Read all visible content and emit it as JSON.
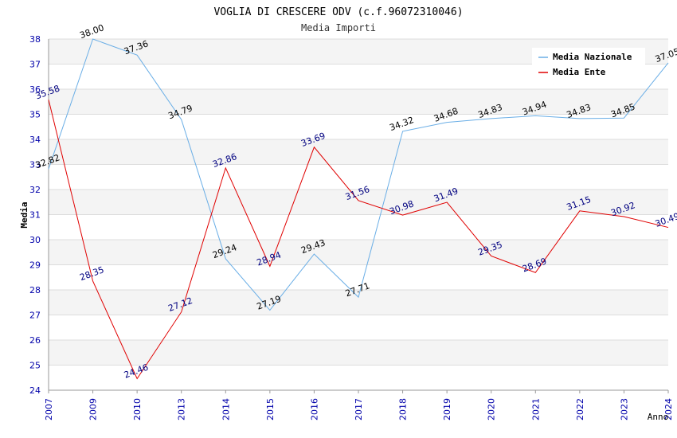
{
  "chart_data": {
    "type": "line",
    "title": "VOGLIA DI CRESCERE ODV (c.f.96072310046)",
    "subtitle": "Media Importi",
    "xlabel": "Anno",
    "ylabel": "Media",
    "ylim": [
      24,
      38
    ],
    "yticks": [
      "24",
      "25",
      "26",
      "27",
      "28",
      "29",
      "30",
      "31",
      "32",
      "33",
      "34",
      "35",
      "36",
      "37",
      "38"
    ],
    "categories": [
      "2007",
      "2009",
      "2010",
      "2013",
      "2014",
      "2015",
      "2016",
      "2017",
      "2018",
      "2019",
      "2020",
      "2021",
      "2022",
      "2023",
      "2024"
    ],
    "grid": true,
    "legend_position": "top-right",
    "series": [
      {
        "name": "Media Nazionale",
        "color": "#6aaee6",
        "label_color": "#000000",
        "values": [
          32.82,
          38.0,
          37.36,
          34.79,
          29.24,
          27.19,
          29.43,
          27.71,
          34.32,
          34.68,
          34.83,
          34.94,
          34.83,
          34.85,
          37.05
        ],
        "labels": [
          "32.82",
          "38.00",
          "37.36",
          "34.79",
          "29.24",
          "27.19",
          "29.43",
          "27.71",
          "34.32",
          "34.68",
          "34.83",
          "34.94",
          "34.83",
          "34.85",
          "37.05"
        ]
      },
      {
        "name": "Media Ente",
        "color": "#e00000",
        "label_color": "#000080",
        "values": [
          35.58,
          28.35,
          24.46,
          27.12,
          32.86,
          28.94,
          33.69,
          31.56,
          30.98,
          31.49,
          29.35,
          28.69,
          31.15,
          30.92,
          30.49
        ],
        "labels": [
          "35.58",
          "28.35",
          "24.46",
          "27.12",
          "32.86",
          "28.94",
          "33.69",
          "31.56",
          "30.98",
          "31.49",
          "29.35",
          "28.69",
          "31.15",
          "30.92",
          "30.49"
        ]
      }
    ]
  }
}
